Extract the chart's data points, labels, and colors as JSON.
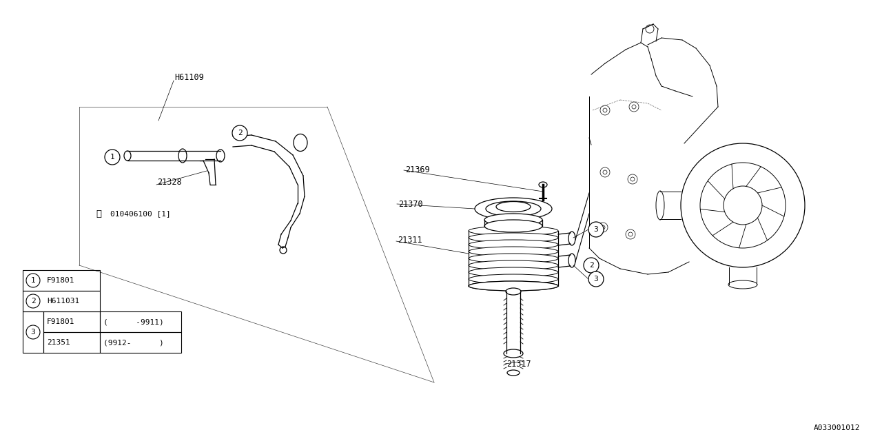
{
  "bg_color": "#ffffff",
  "line_color": "#000000",
  "diagram_id": "A033001012",
  "table_rows": [
    {
      "bubble": "1",
      "part": "F91801",
      "range": ""
    },
    {
      "bubble": "2",
      "part": "H611031",
      "range": ""
    },
    {
      "bubble": "3",
      "part": "F91801",
      "range": "(      -9911)"
    },
    {
      "bubble": "3",
      "part": "21351",
      "range": "(9912-      )"
    }
  ]
}
